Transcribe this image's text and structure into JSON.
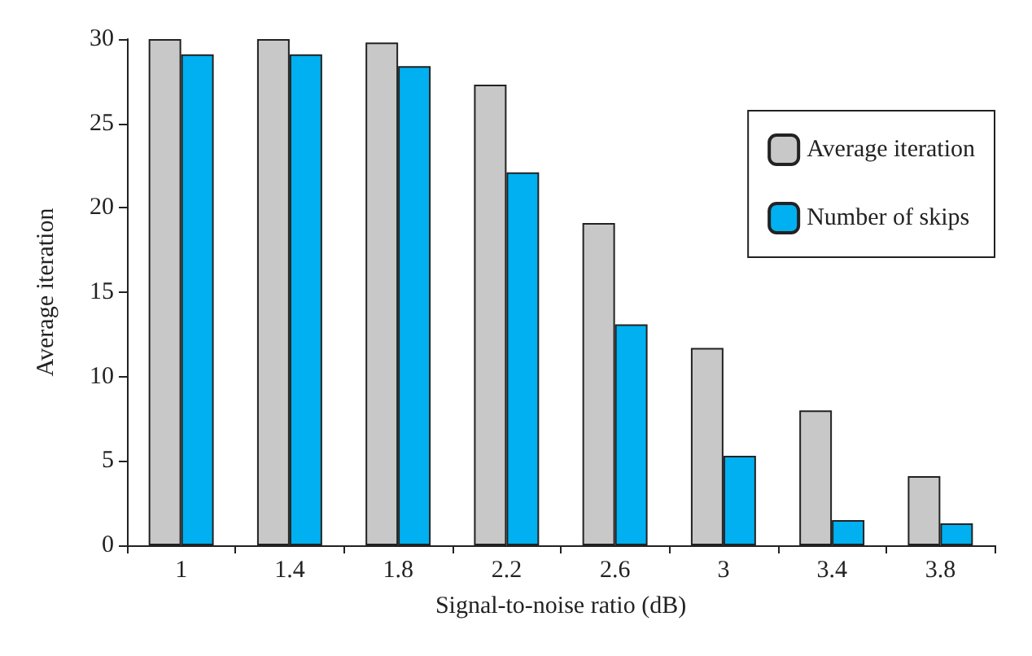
{
  "chart_data": {
    "type": "bar",
    "xlabel": "Signal-to-noise ratio (dB)",
    "ylabel": "Average iteration",
    "categories": [
      "1",
      "1.4",
      "1.8",
      "2.2",
      "2.6",
      "3",
      "3.4",
      "3.8"
    ],
    "series": [
      {
        "name": "Average iteration",
        "color": "#c8c8c8",
        "values": [
          30,
          30,
          29.8,
          27.3,
          19.1,
          11.7,
          8,
          4.1
        ]
      },
      {
        "name": "Number of skips",
        "color": "#00b0f0",
        "values": [
          29.1,
          29.1,
          28.4,
          22.1,
          13.1,
          5.3,
          1.5,
          1.3
        ]
      }
    ],
    "ylim": [
      0,
      30
    ],
    "yticks": [
      0,
      5,
      10,
      15,
      20,
      25,
      30
    ],
    "grid": false,
    "legend": "top right"
  }
}
